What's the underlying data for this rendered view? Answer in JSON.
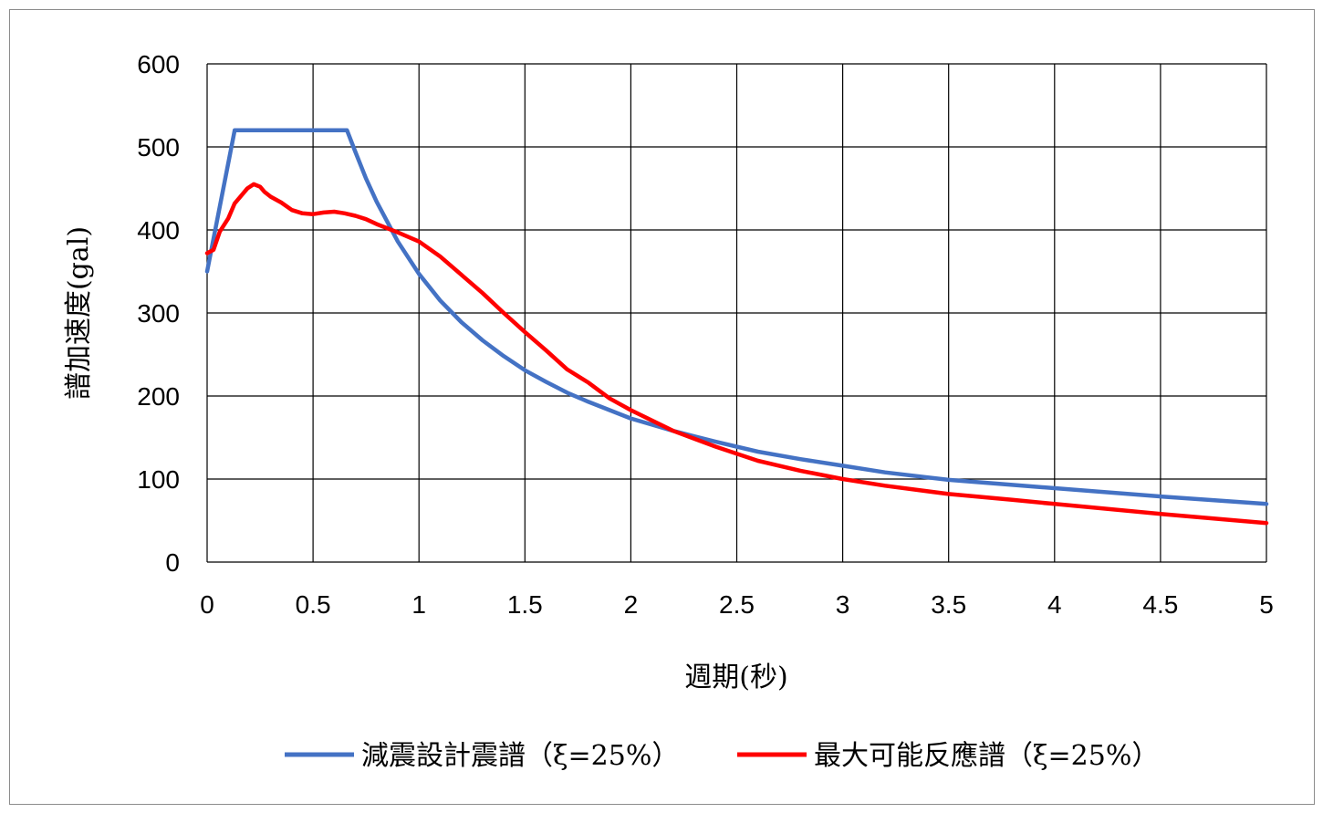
{
  "chart_data": {
    "type": "line",
    "title": "",
    "xlabel": "週期(秒)",
    "ylabel": "譜加速度(gal)",
    "xlim": [
      0,
      5
    ],
    "ylim": [
      0,
      600
    ],
    "x_ticks": [
      "0",
      "0.5",
      "1",
      "1.5",
      "2",
      "2.5",
      "3",
      "3.5",
      "4",
      "4.5",
      "5"
    ],
    "y_ticks": [
      "0",
      "100",
      "200",
      "300",
      "400",
      "500",
      "600"
    ],
    "grid": true,
    "legend_position": "bottom",
    "series": [
      {
        "name": "減震設計震譜（ξ=25%）",
        "color": "#4472C4",
        "points": [
          [
            0,
            350
          ],
          [
            0.13,
            520
          ],
          [
            0.66,
            520
          ],
          [
            0.7,
            494
          ],
          [
            0.75,
            462
          ],
          [
            0.8,
            434
          ],
          [
            0.9,
            386
          ],
          [
            1.0,
            347
          ],
          [
            1.1,
            315
          ],
          [
            1.2,
            289
          ],
          [
            1.3,
            267
          ],
          [
            1.4,
            248
          ],
          [
            1.5,
            231
          ],
          [
            1.6,
            217
          ],
          [
            1.7,
            204
          ],
          [
            1.8,
            193
          ],
          [
            1.9,
            183
          ],
          [
            2.0,
            173
          ],
          [
            2.2,
            158
          ],
          [
            2.4,
            145
          ],
          [
            2.6,
            133
          ],
          [
            2.8,
            124
          ],
          [
            3.0,
            116
          ],
          [
            3.2,
            108
          ],
          [
            3.5,
            99
          ],
          [
            3.8,
            93
          ],
          [
            4.0,
            89
          ],
          [
            4.5,
            79
          ],
          [
            5.0,
            70
          ]
        ]
      },
      {
        "name": "最大可能反應譜（ξ=25%）",
        "color": "#FF0000",
        "points": [
          [
            0,
            372
          ],
          [
            0.03,
            376
          ],
          [
            0.06,
            398
          ],
          [
            0.1,
            414
          ],
          [
            0.13,
            432
          ],
          [
            0.16,
            441
          ],
          [
            0.19,
            450
          ],
          [
            0.22,
            455
          ],
          [
            0.25,
            452
          ],
          [
            0.27,
            446
          ],
          [
            0.3,
            440
          ],
          [
            0.35,
            433
          ],
          [
            0.4,
            424
          ],
          [
            0.45,
            420
          ],
          [
            0.5,
            419
          ],
          [
            0.55,
            421
          ],
          [
            0.6,
            422
          ],
          [
            0.65,
            420
          ],
          [
            0.7,
            417
          ],
          [
            0.75,
            413
          ],
          [
            0.8,
            407
          ],
          [
            0.9,
            397
          ],
          [
            1.0,
            386
          ],
          [
            1.1,
            368
          ],
          [
            1.2,
            346
          ],
          [
            1.3,
            324
          ],
          [
            1.4,
            300
          ],
          [
            1.5,
            277
          ],
          [
            1.6,
            255
          ],
          [
            1.7,
            232
          ],
          [
            1.8,
            216
          ],
          [
            1.9,
            197
          ],
          [
            2.0,
            183
          ],
          [
            2.2,
            158
          ],
          [
            2.4,
            139
          ],
          [
            2.6,
            122
          ],
          [
            2.8,
            110
          ],
          [
            3.0,
            100
          ],
          [
            3.2,
            92
          ],
          [
            3.5,
            82
          ],
          [
            3.8,
            75
          ],
          [
            4.0,
            70
          ],
          [
            4.5,
            58
          ],
          [
            5.0,
            47
          ]
        ]
      }
    ]
  }
}
